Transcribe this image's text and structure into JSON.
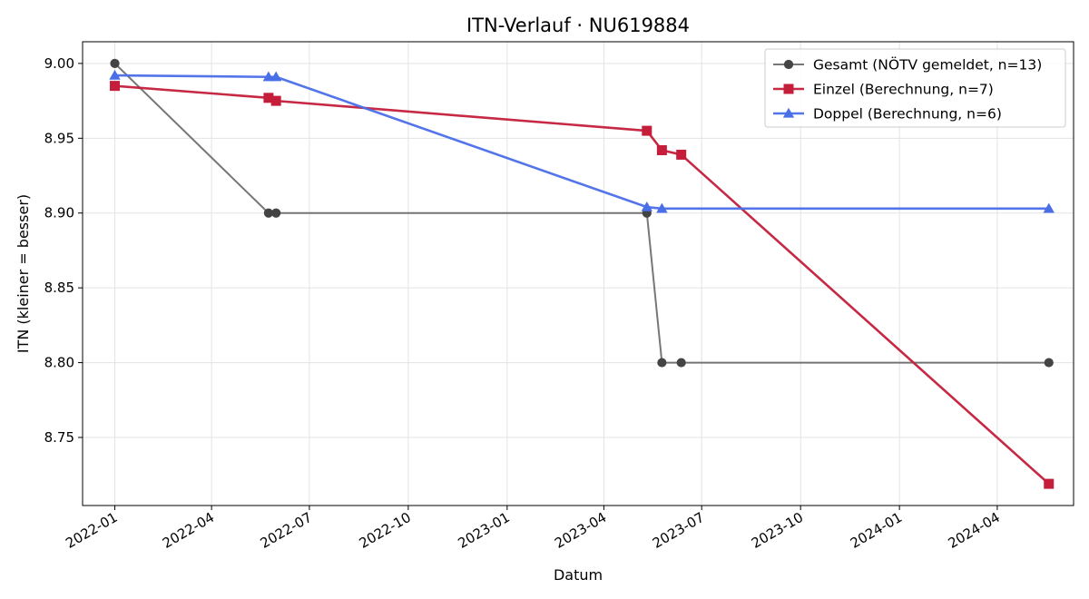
{
  "chart_data": {
    "type": "line",
    "title": "ITN-Verlauf · NU619884",
    "xlabel": "Datum",
    "ylabel": "ITN  (kleiner = besser)",
    "x_axis_type": "date",
    "xlim": [
      "2021-12-02",
      "2024-06-11"
    ],
    "ylim": [
      8.7045,
      9.0145
    ],
    "x_ticks": [
      "2022-01-01",
      "2022-04-01",
      "2022-07-01",
      "2022-10-01",
      "2023-01-01",
      "2023-04-01",
      "2023-07-01",
      "2023-10-01",
      "2024-01-01",
      "2024-04-01"
    ],
    "x_tick_labels": [
      "2022-01",
      "2022-04",
      "2022-07",
      "2022-10",
      "2023-01",
      "2023-04",
      "2023-07",
      "2023-10",
      "2024-01",
      "2024-04"
    ],
    "y_ticks": [
      8.75,
      8.8,
      8.85,
      8.9,
      8.95,
      9.0
    ],
    "y_tick_labels": [
      "8.75",
      "8.80",
      "8.85",
      "8.90",
      "8.95",
      "9.00"
    ],
    "grid": true,
    "legend_position": "top-right",
    "series": [
      {
        "name": "Gesamt (NÖTV gemeldet, n=13)",
        "color": "#555555",
        "marker": "circle",
        "points": [
          {
            "x": "2022-01-01",
            "y": 9.0
          },
          {
            "x": "2022-05-24",
            "y": 8.9
          },
          {
            "x": "2022-05-31",
            "y": 8.9
          },
          {
            "x": "2023-05-11",
            "y": 8.9
          },
          {
            "x": "2023-05-25",
            "y": 8.8
          },
          {
            "x": "2023-06-12",
            "y": 8.8
          },
          {
            "x": "2024-05-19",
            "y": 8.8
          }
        ]
      },
      {
        "name": "Einzel (Berechnung, n=7)",
        "color": "#c41e3a",
        "marker": "square",
        "points": [
          {
            "x": "2022-01-01",
            "y": 8.985
          },
          {
            "x": "2022-05-24",
            "y": 8.977
          },
          {
            "x": "2022-05-31",
            "y": 8.975
          },
          {
            "x": "2023-05-11",
            "y": 8.955
          },
          {
            "x": "2023-05-25",
            "y": 8.942
          },
          {
            "x": "2023-06-12",
            "y": 8.939
          },
          {
            "x": "2024-05-19",
            "y": 8.719
          }
        ]
      },
      {
        "name": "Doppel (Berechnung, n=6)",
        "color": "#4a6ee8",
        "marker": "triangle",
        "points": [
          {
            "x": "2022-01-01",
            "y": 8.992
          },
          {
            "x": "2022-05-24",
            "y": 8.991
          },
          {
            "x": "2022-05-31",
            "y": 8.991
          },
          {
            "x": "2023-05-11",
            "y": 8.904
          },
          {
            "x": "2023-05-25",
            "y": 8.903
          },
          {
            "x": "2024-05-19",
            "y": 8.903
          }
        ]
      }
    ]
  }
}
